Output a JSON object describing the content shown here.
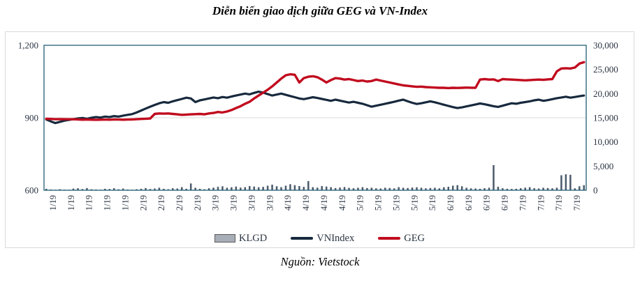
{
  "title": "Diễn biến giao dịch giữa GEG và VN-Index",
  "source": "Nguồn: Vietstock",
  "colors": {
    "vnindex": "#17293d",
    "geg": "#c10b1e",
    "volume_bar": "#4a5a6c",
    "legend_bar_fill": "#a8aeb8",
    "legend_bar_border": "#595959",
    "plot_border": "#215e74",
    "gridline": "#d9d9d9",
    "axis_text": "#2a3442",
    "frame_border": "#d9d9d9"
  },
  "legend": [
    {
      "label": "KLGD",
      "type": "bar"
    },
    {
      "label": "VNIndex",
      "type": "line"
    },
    {
      "label": "GEG",
      "type": "line"
    }
  ],
  "chart_data": {
    "type": "bar+line combo",
    "title": "Diễn biến giao dịch giữa GEG và VN-Index",
    "xlabel": "",
    "ylabel_left": "",
    "ylabel_right": "",
    "grid": "single horizontal gridline at left value 900 / right value 15,000",
    "legend_position": "bottom center",
    "left_axis": {
      "min": 600,
      "max": 1200,
      "tick_labels": [
        "1,200",
        "900",
        "600"
      ],
      "tick_values": [
        1200,
        900,
        600
      ]
    },
    "right_axis": {
      "min": 0,
      "max": 30000,
      "tick_labels": [
        "30,000",
        "25,000",
        "20,000",
        "15,000",
        "10,000",
        "5,000",
        "0"
      ],
      "tick_values": [
        30000,
        25000,
        20000,
        15000,
        10000,
        5000,
        0
      ]
    },
    "x_tick_labels": [
      "1/19",
      "1/19",
      "1/19",
      "1/19",
      "1/19",
      "2/19",
      "2/19",
      "2/19",
      "2/19",
      "3/19",
      "3/19",
      "3/19",
      "3/19",
      "4/19",
      "4/19",
      "4/19",
      "4/19",
      "5/19",
      "5/19",
      "5/19",
      "5/19",
      "5/19",
      "6/19",
      "6/19",
      "6/19",
      "6/19",
      "7/19",
      "7/19",
      "7/19",
      "7/19"
    ],
    "series": [
      {
        "name": "KLGD",
        "type": "bar",
        "axis": "right",
        "values": [
          300,
          150,
          100,
          200,
          120,
          100,
          350,
          420,
          250,
          450,
          200,
          150,
          100,
          300,
          260,
          420,
          200,
          350,
          150,
          100,
          200,
          300,
          460,
          260,
          360,
          520,
          300,
          200,
          420,
          360,
          640,
          300,
          1400,
          520,
          300,
          200,
          420,
          540,
          700,
          820,
          520,
          620,
          760,
          540,
          640,
          860,
          760,
          620,
          700,
          940,
          1150,
          820,
          640,
          940,
          1250,
          1050,
          860,
          700,
          1900,
          640,
          540,
          860,
          760,
          640,
          460,
          560,
          660,
          500,
          420,
          520,
          640,
          460,
          520,
          400,
          360,
          520,
          460,
          400,
          640,
          520,
          460,
          560,
          620,
          520,
          400,
          460,
          520,
          400,
          620,
          720,
          940,
          1050,
          820,
          520,
          400,
          360,
          300,
          420,
          520,
          5200,
          720,
          420,
          300,
          260,
          300,
          420,
          540,
          640,
          420,
          360,
          520,
          460,
          400,
          520,
          3100,
          3300,
          3200,
          400,
          820,
          1050
        ]
      },
      {
        "name": "VNIndex",
        "type": "line",
        "axis": "left",
        "values": [
          893,
          885,
          878,
          883,
          888,
          891,
          894,
          897,
          899,
          896,
          900,
          903,
          901,
          905,
          903,
          907,
          905,
          909,
          912,
          915,
          922,
          930,
          938,
          946,
          953,
          960,
          965,
          962,
          968,
          973,
          978,
          983,
          980,
          965,
          972,
          976,
          980,
          984,
          981,
          986,
          983,
          988,
          992,
          996,
          1000,
          997,
          1003,
          1008,
          1004,
          998,
          992,
          996,
          1000,
          995,
          990,
          985,
          980,
          977,
          981,
          985,
          982,
          978,
          974,
          970,
          975,
          971,
          967,
          963,
          966,
          962,
          958,
          952,
          946,
          950,
          954,
          958,
          962,
          966,
          971,
          975,
          968,
          962,
          957,
          960,
          964,
          968,
          964,
          959,
          954,
          949,
          944,
          940,
          943,
          947,
          951,
          955,
          959,
          956,
          952,
          948,
          945,
          950,
          955,
          960,
          958,
          962,
          965,
          968,
          972,
          975,
          970,
          973,
          977,
          981,
          984,
          987,
          983,
          986,
          989,
          992
        ]
      },
      {
        "name": "GEG",
        "type": "line",
        "axis": "right",
        "values": [
          14800,
          14750,
          14700,
          14720,
          14700,
          14680,
          14700,
          14650,
          14600,
          14620,
          14600,
          14580,
          14600,
          14620,
          14600,
          14650,
          14630,
          14600,
          14620,
          14650,
          14700,
          14750,
          14800,
          14850,
          15800,
          15900,
          15850,
          15900,
          15800,
          15700,
          15600,
          15650,
          15700,
          15750,
          15800,
          15700,
          15900,
          16000,
          16200,
          16100,
          16300,
          16600,
          17000,
          17400,
          17900,
          18300,
          19000,
          19600,
          20200,
          20800,
          21500,
          22300,
          23100,
          23800,
          24000,
          23900,
          22300,
          23200,
          23500,
          23600,
          23400,
          22900,
          22300,
          22800,
          23200,
          23100,
          22900,
          23000,
          22800,
          22600,
          22700,
          22500,
          22600,
          22900,
          22700,
          22500,
          22300,
          22100,
          21900,
          21700,
          21600,
          21500,
          21400,
          21450,
          21350,
          21300,
          21250,
          21200,
          21200,
          21150,
          21200,
          21180,
          21200,
          21250,
          21220,
          21200,
          22900,
          23000,
          22900,
          22950,
          22600,
          23000,
          22950,
          22900,
          22850,
          22800,
          22750,
          22800,
          22850,
          22900,
          22850,
          22950,
          23000,
          24600,
          25200,
          25250,
          25200,
          25400,
          26200,
          26500
        ]
      }
    ]
  }
}
